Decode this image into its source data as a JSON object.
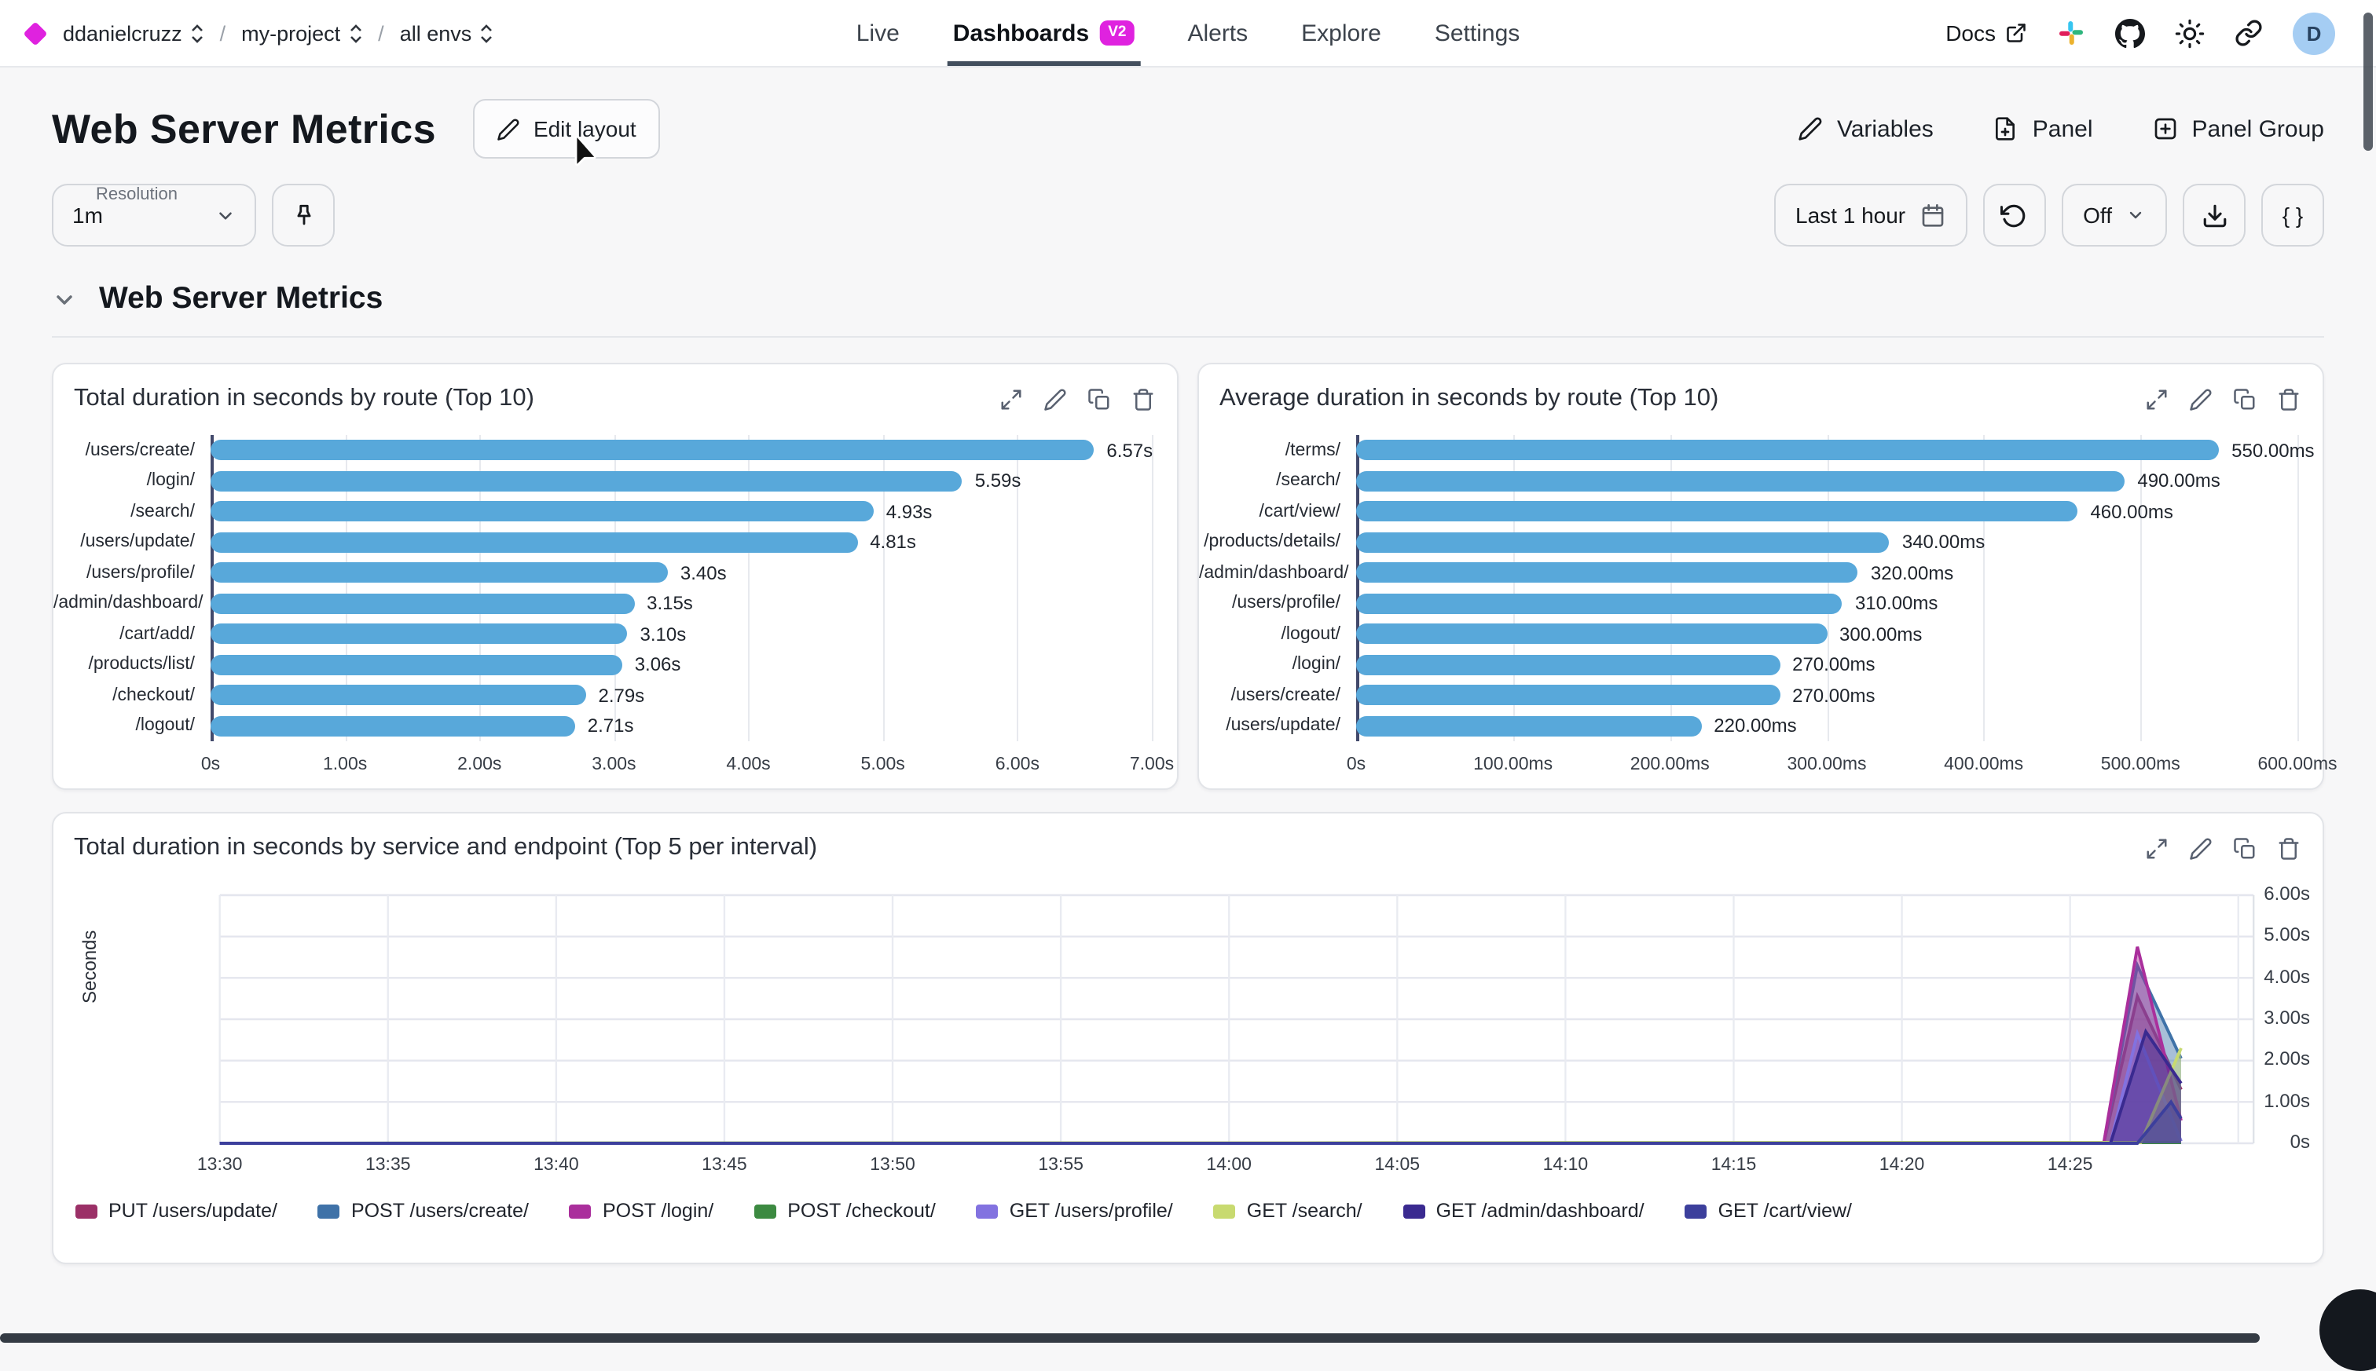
{
  "topbar": {
    "breadcrumb": [
      {
        "label": "ddanielcruzz"
      },
      {
        "label": "my-project"
      },
      {
        "label": "all envs"
      }
    ],
    "nav": [
      {
        "label": "Live",
        "active": false
      },
      {
        "label": "Dashboards",
        "active": true,
        "badge": "V2"
      },
      {
        "label": "Alerts",
        "active": false
      },
      {
        "label": "Explore",
        "active": false
      },
      {
        "label": "Settings",
        "active": false
      }
    ],
    "docs_label": "Docs",
    "avatar_initial": "D"
  },
  "header": {
    "title": "Web Server Metrics",
    "edit_layout_label": "Edit layout",
    "variables_label": "Variables",
    "panel_label": "Panel",
    "panel_group_label": "Panel Group"
  },
  "controls": {
    "resolution_label": "Resolution",
    "resolution_value": "1m",
    "time_range_label": "Last 1 hour",
    "auto_refresh_label": "Off",
    "code_label": "{ }"
  },
  "section": {
    "title": "Web Server Metrics"
  },
  "colors": {
    "accent": "#df22df",
    "bar_blue": "#58a8da",
    "axis_line": "#42496b",
    "active_tab_underline": "#434f5e"
  },
  "chart_data": [
    {
      "type": "bar",
      "orientation": "horizontal",
      "title": "Total duration in seconds by route (Top 10)",
      "categories": [
        "/users/create/",
        "/login/",
        "/search/",
        "/users/update/",
        "/users/profile/",
        "/admin/dashboard/",
        "/cart/add/",
        "/products/list/",
        "/checkout/",
        "/logout/"
      ],
      "values": [
        6.57,
        5.59,
        4.93,
        4.81,
        3.4,
        3.15,
        3.1,
        3.06,
        2.79,
        2.71
      ],
      "value_labels": [
        "6.57s",
        "5.59s",
        "4.93s",
        "4.81s",
        "3.40s",
        "3.15s",
        "3.10s",
        "3.06s",
        "2.79s",
        "2.71s"
      ],
      "xticks": [
        "0s",
        "1.00s",
        "2.00s",
        "3.00s",
        "4.00s",
        "5.00s",
        "6.00s",
        "7.00s"
      ],
      "xlim": [
        0,
        7
      ],
      "bar_color": "#58a8da",
      "grid": true
    },
    {
      "type": "bar",
      "orientation": "horizontal",
      "title": "Average duration in seconds by route (Top 10)",
      "categories": [
        "/terms/",
        "/search/",
        "/cart/view/",
        "/products/details/",
        "/admin/dashboard/",
        "/users/profile/",
        "/logout/",
        "/login/",
        "/users/create/",
        "/users/update/"
      ],
      "values": [
        550,
        490,
        460,
        340,
        320,
        310,
        300,
        270,
        270,
        220
      ],
      "value_labels": [
        "550.00ms",
        "490.00ms",
        "460.00ms",
        "340.00ms",
        "320.00ms",
        "310.00ms",
        "300.00ms",
        "270.00ms",
        "270.00ms",
        "220.00ms"
      ],
      "xticks": [
        "0s",
        "100.00ms",
        "200.00ms",
        "300.00ms",
        "400.00ms",
        "500.00ms",
        "600.00ms"
      ],
      "xlim": [
        0,
        600
      ],
      "bar_color": "#58a8da",
      "grid": true
    },
    {
      "type": "line",
      "title": "Total duration in seconds by service and endpoint (Top 5 per interval)",
      "ylabel": "Seconds",
      "yticks": [
        "0s",
        "1.00s",
        "2.00s",
        "3.00s",
        "4.00s",
        "5.00s",
        "6.00s"
      ],
      "ylim": [
        0,
        6
      ],
      "xticks": [
        "13:30",
        "13:35",
        "13:40",
        "13:45",
        "13:50",
        "13:55",
        "14:00",
        "14:05",
        "14:10",
        "14:15",
        "14:20",
        "14:25"
      ],
      "x_minutes_per_tick": 5,
      "grid": true,
      "legend_position": "bottom",
      "series": [
        {
          "name": "PUT /users/update/",
          "color": "#9b3067",
          "points": [
            [
              0,
              0
            ],
            [
              56,
              0
            ],
            [
              57,
              3.55
            ],
            [
              58.3,
              1.3
            ]
          ]
        },
        {
          "name": "POST /users/create/",
          "color": "#3f72a8",
          "points": [
            [
              0,
              0
            ],
            [
              56,
              0
            ],
            [
              57,
              4.3
            ],
            [
              58.3,
              2.05
            ]
          ]
        },
        {
          "name": "POST /login/",
          "color": "#aa2f9c",
          "points": [
            [
              0,
              0
            ],
            [
              56,
              0
            ],
            [
              57,
              4.75
            ],
            [
              58.3,
              0.55
            ]
          ]
        },
        {
          "name": "POST /checkout/",
          "color": "#3c8a41",
          "points": [
            [
              0,
              0
            ],
            [
              58.3,
              0.02
            ]
          ]
        },
        {
          "name": "GET /users/profile/",
          "color": "#8272e0",
          "points": [
            [
              0,
              0
            ],
            [
              56.2,
              0
            ],
            [
              57,
              2.65
            ],
            [
              58.3,
              0.05
            ]
          ]
        },
        {
          "name": "GET /search/",
          "color": "#c8da70",
          "points": [
            [
              0,
              0
            ],
            [
              57.1,
              0.02
            ],
            [
              58.3,
              2.3
            ]
          ]
        },
        {
          "name": "GET /admin/dashboard/",
          "color": "#3a2a90",
          "points": [
            [
              0,
              0
            ],
            [
              56.2,
              0
            ],
            [
              57.25,
              2.7
            ],
            [
              58.3,
              1.45
            ]
          ]
        },
        {
          "name": "GET /cart/view/",
          "color": "#3c3f9c",
          "points": [
            [
              0,
              0
            ],
            [
              57,
              0
            ],
            [
              58,
              1.0
            ],
            [
              58.3,
              0.6
            ]
          ]
        }
      ]
    }
  ]
}
